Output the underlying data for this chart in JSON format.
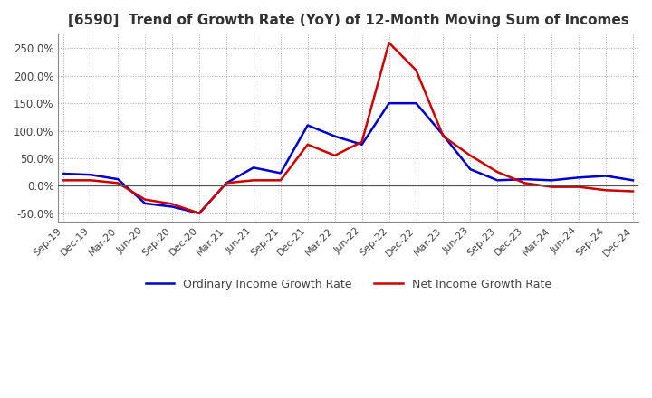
{
  "title": "[6590]  Trend of Growth Rate (YoY) of 12-Month Moving Sum of Incomes",
  "title_fontsize": 11,
  "legend_labels": [
    "Ordinary Income Growth Rate",
    "Net Income Growth Rate"
  ],
  "legend_colors": [
    "#0000cc",
    "#cc0000"
  ],
  "x_labels": [
    "Sep-19",
    "Dec-19",
    "Mar-20",
    "Jun-20",
    "Sep-20",
    "Dec-20",
    "Mar-21",
    "Jun-21",
    "Sep-21",
    "Dec-21",
    "Mar-22",
    "Jun-22",
    "Sep-22",
    "Dec-22",
    "Mar-23",
    "Jun-23",
    "Sep-23",
    "Dec-23",
    "Mar-24",
    "Jun-24",
    "Sep-24",
    "Dec-24"
  ],
  "ordinary_income": [
    22,
    20,
    12,
    -32,
    -38,
    -50,
    5,
    33,
    23,
    110,
    90,
    75,
    150,
    150,
    92,
    30,
    10,
    12,
    10,
    15,
    18,
    10
  ],
  "net_income": [
    10,
    10,
    5,
    -25,
    -33,
    -50,
    5,
    10,
    10,
    75,
    55,
    80,
    260,
    210,
    90,
    55,
    25,
    5,
    -2,
    -2,
    -8,
    -10
  ],
  "ylim": [
    -65,
    275
  ],
  "yticks": [
    -50.0,
    0.0,
    50.0,
    100.0,
    150.0,
    200.0,
    250.0
  ],
  "background_color": "#ffffff",
  "grid_color": "#aaaaaa",
  "line_width": 1.8
}
